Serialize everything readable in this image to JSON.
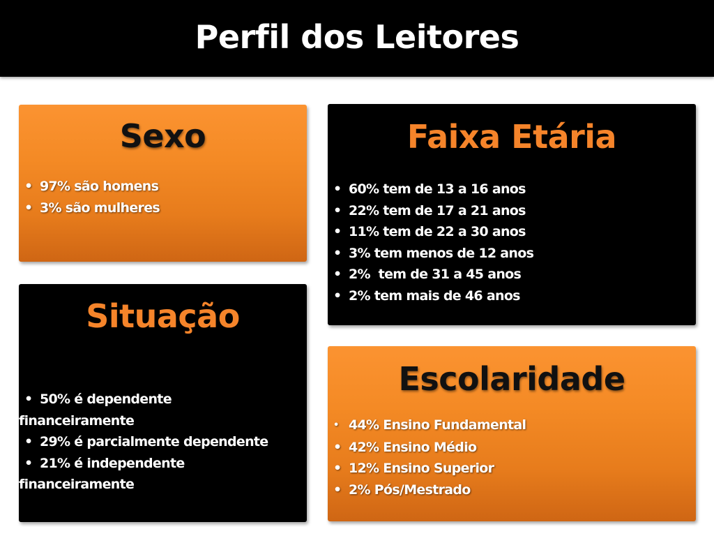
{
  "slide": {
    "title": "Perfil dos Leitores"
  },
  "colors": {
    "title_bar": "#000000",
    "orange_box": "#f48a25",
    "black_box": "#000000",
    "orange_heading_on_black": "#f5842a",
    "text": "#ffffff"
  },
  "sexo": {
    "heading": "Sexo",
    "items": [
      {
        "bullet": "•",
        "text": "97% são homens"
      },
      {
        "bullet": "•",
        "text": "3% são mulheres"
      }
    ]
  },
  "faixa_etaria": {
    "heading": "Faixa Etária",
    "items": [
      {
        "bullet": "•",
        "text": "60% tem de 13 a 16 anos"
      },
      {
        "bullet": "•",
        "text": "22% tem de 17 a 21 anos"
      },
      {
        "bullet": "•",
        "text": "11% tem de 22 a 30 anos"
      },
      {
        "bullet": "•",
        "text": "3% tem menos de 12 anos"
      },
      {
        "bullet": "•",
        "text": "2%  tem de 31 a 45 anos"
      },
      {
        "bullet": "•",
        "text": "2% tem mais de 46 anos"
      }
    ]
  },
  "situacao": {
    "heading": "Situação",
    "items": [
      {
        "bullet": "•",
        "text": "50% é dependente",
        "continuation": "financeiramente"
      },
      {
        "bullet": "•",
        "text": "29% é parcialmente dependente"
      },
      {
        "bullet": "•",
        "text": "21% é independente",
        "continuation": "financeiramente"
      }
    ]
  },
  "escolaridade": {
    "heading": "Escolaridade",
    "items": [
      {
        "bullet": "•",
        "text": "44% Ensino Fundamental"
      },
      {
        "bullet": "•",
        "text": "42% Ensino Médio"
      },
      {
        "bullet": "•",
        "text": "12% Ensino Superior"
      },
      {
        "bullet": "•",
        "text": "2% Pós/Mestrado"
      }
    ]
  }
}
